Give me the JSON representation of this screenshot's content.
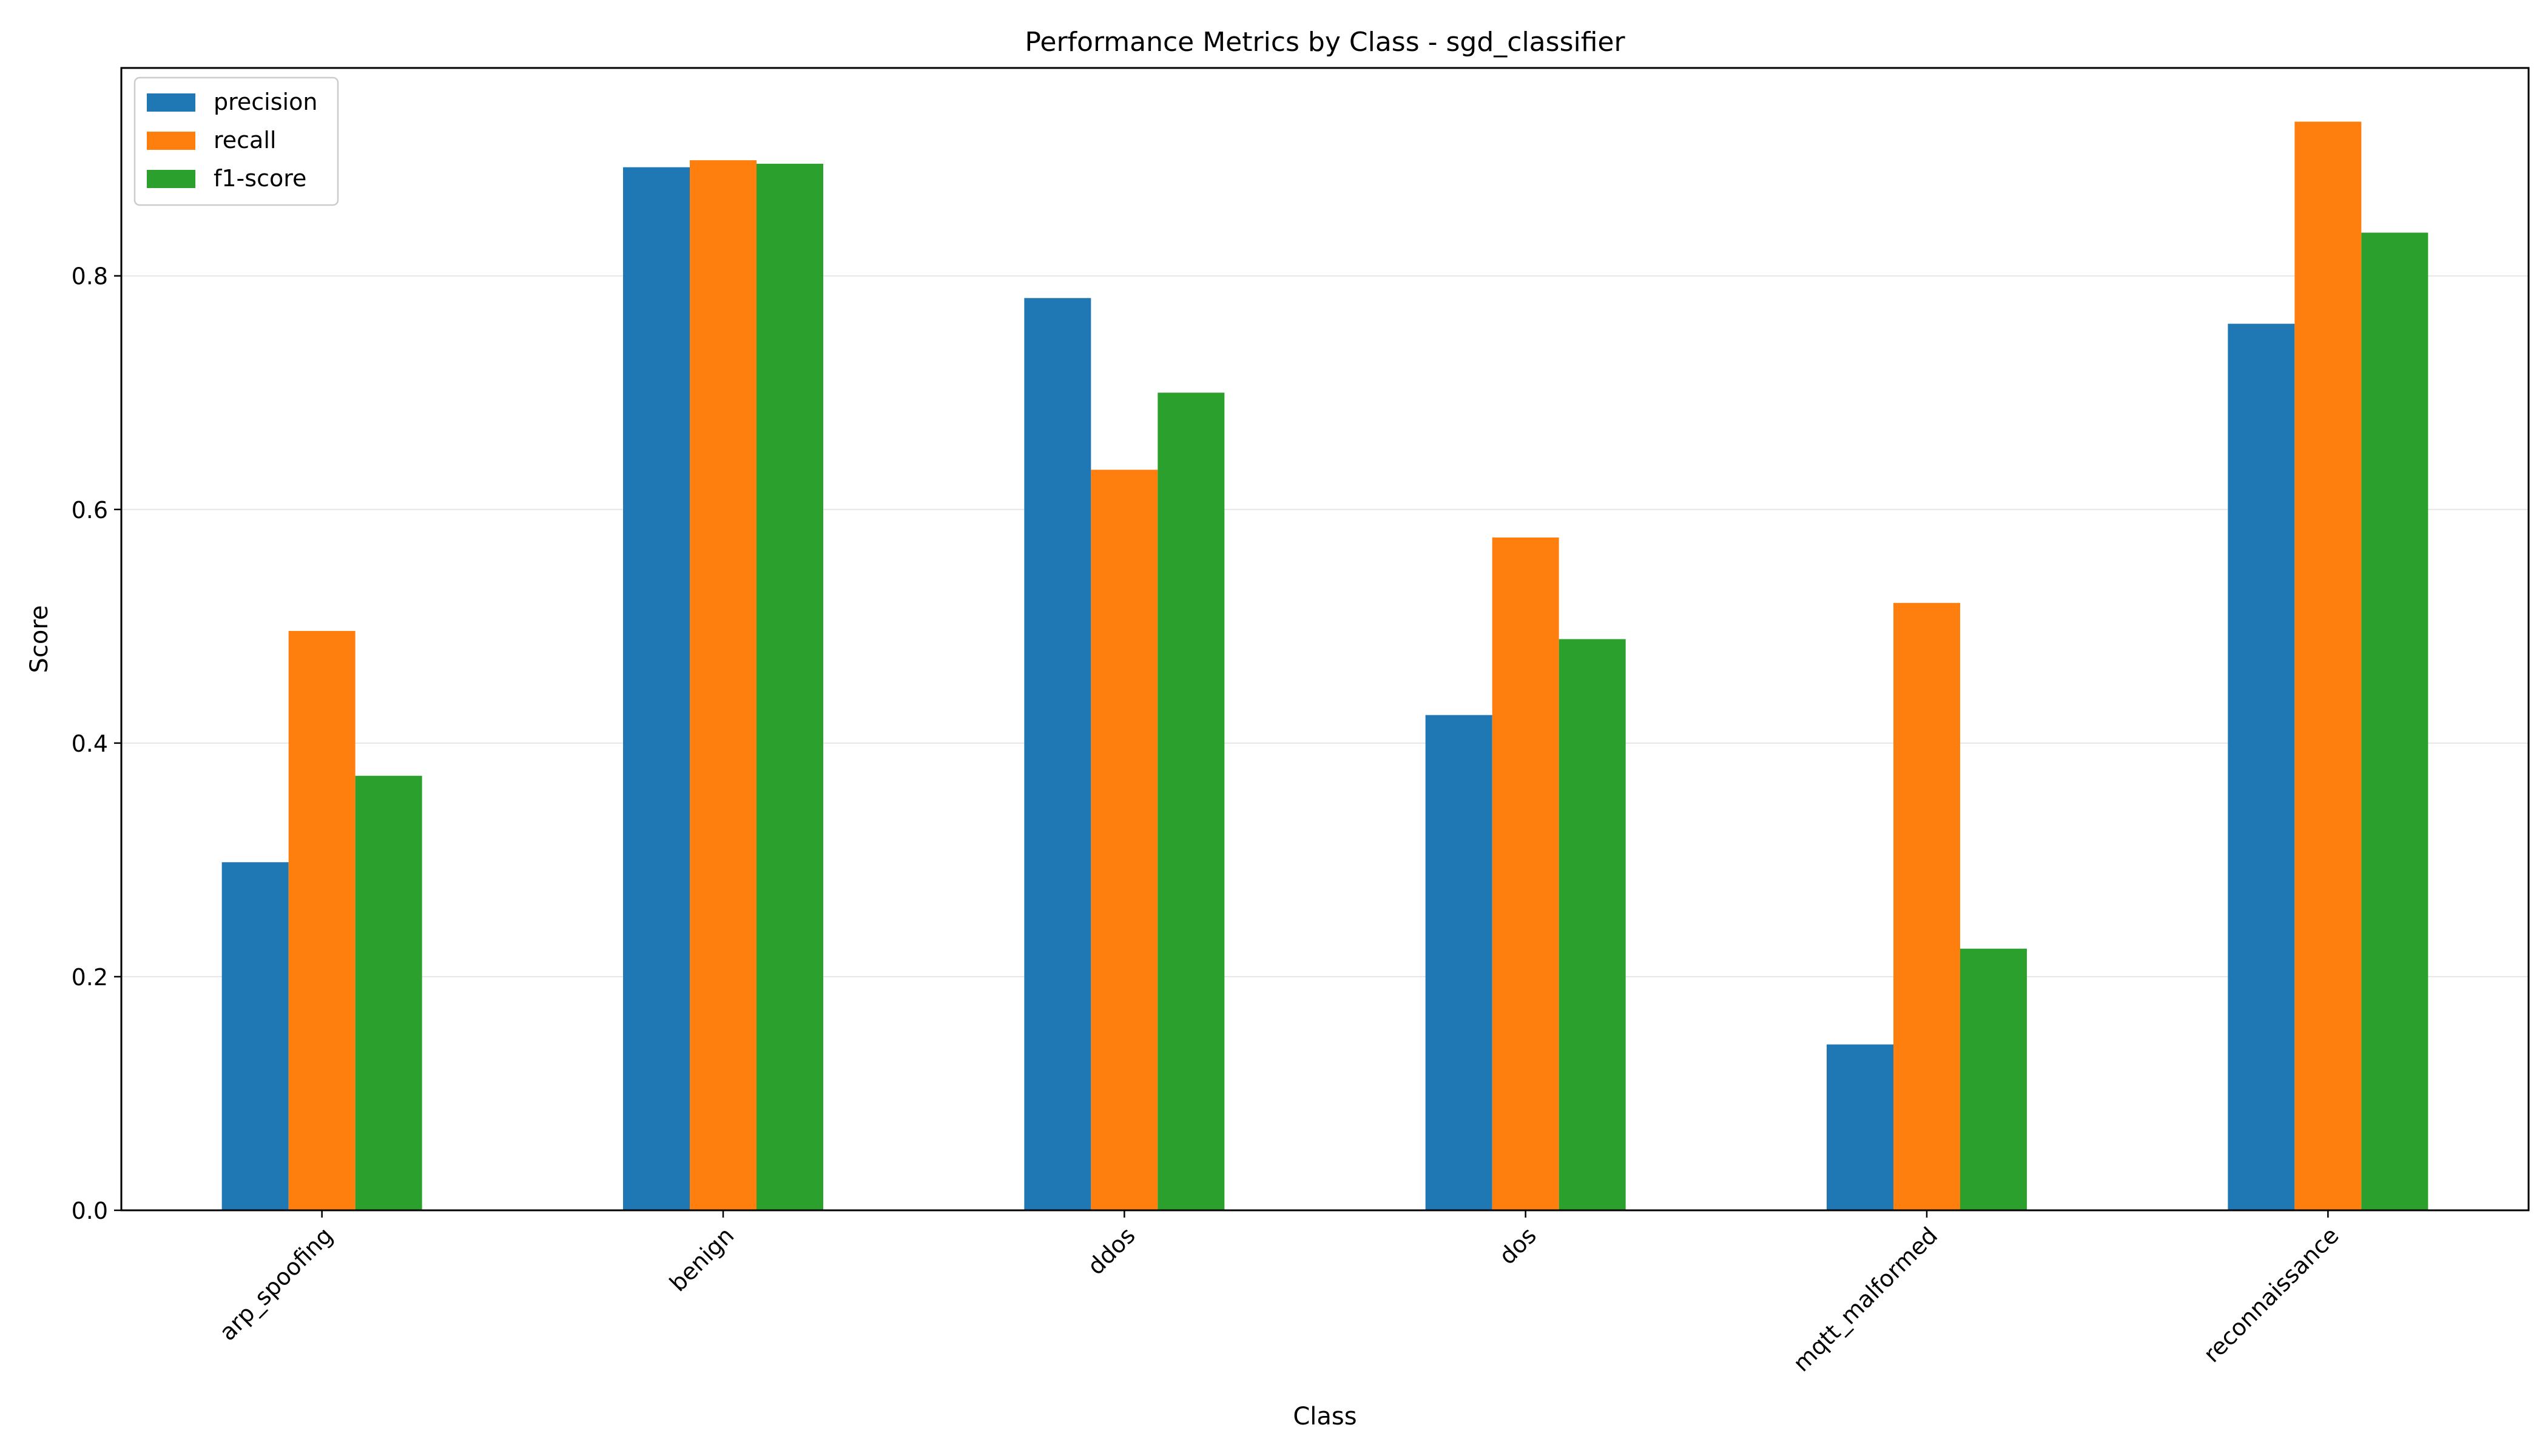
{
  "chart_data": {
    "type": "bar",
    "title": "Performance Metrics by Class - sgd_classifier",
    "xlabel": "Class",
    "ylabel": "Score",
    "categories": [
      "arp_spoofing",
      "benign",
      "ddos",
      "dos",
      "mqtt_malformed",
      "reconnaissance"
    ],
    "series": [
      {
        "name": "precision",
        "color": "#1f77b4",
        "values": [
          0.298,
          0.893,
          0.781,
          0.424,
          0.142,
          0.759
        ]
      },
      {
        "name": "recall",
        "color": "#ff7f0e",
        "values": [
          0.496,
          0.899,
          0.634,
          0.576,
          0.52,
          0.932
        ]
      },
      {
        "name": "f1-score",
        "color": "#2ca02c",
        "values": [
          0.372,
          0.896,
          0.7,
          0.489,
          0.224,
          0.837
        ]
      }
    ],
    "yticks": [
      "0.0",
      "0.2",
      "0.4",
      "0.6",
      "0.8"
    ],
    "ylim": [
      0,
      0.978
    ],
    "grid": "y",
    "legend": "top-left"
  }
}
